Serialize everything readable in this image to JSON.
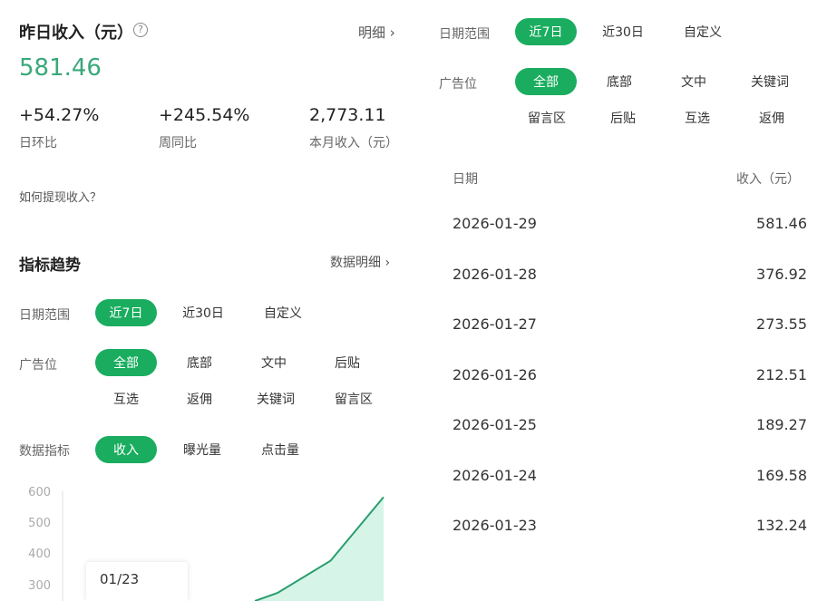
{
  "summary": {
    "title": "昨日收入（元）",
    "help_icon": "question-circle-icon",
    "detail_link": "明细",
    "value": "581.46",
    "accent": "#3aa87a",
    "stats": [
      {
        "value": "+54.27%",
        "label": "日环比"
      },
      {
        "value": "+245.54%",
        "label": "周同比"
      },
      {
        "value": "2,773.11",
        "label": "本月收入（元）"
      }
    ],
    "withdraw_link": "如何提现收入？"
  },
  "trend": {
    "title": "指标趋势",
    "detail_link": "数据明细",
    "date_label": "日期范围",
    "date_options": [
      "近7日",
      "近30日",
      "自定义"
    ],
    "ad_label": "广告位",
    "ad_options": [
      "全部",
      "底部",
      "文中",
      "后贴",
      "互选",
      "返佣",
      "关键词",
      "留言区"
    ],
    "metric_label": "数据指标",
    "metric_options": [
      "收入",
      "曝光量",
      "点击量"
    ],
    "tooltip": "01/23"
  },
  "chart_data": {
    "type": "area",
    "x": [
      "01/23",
      "01/24",
      "01/25",
      "01/26",
      "01/27",
      "01/28",
      "01/29"
    ],
    "values": [
      132.24,
      169.58,
      189.27,
      212.51,
      273.55,
      376.92,
      581.46
    ],
    "yticks": [
      "600",
      "500",
      "400",
      "300"
    ],
    "ylim": [
      0,
      600
    ],
    "color": "#2a9d6e"
  },
  "right": {
    "date_label": "日期范围",
    "date_options": [
      "近7日",
      "近30日",
      "自定义"
    ],
    "ad_label": "广告位",
    "ad_options": [
      "全部",
      "底部",
      "文中",
      "关键词",
      "留言区",
      "后贴",
      "互选",
      "返佣"
    ],
    "table": {
      "headers": [
        "日期",
        "收入（元）"
      ],
      "rows": [
        [
          "2026-01-29",
          "581.46"
        ],
        [
          "2026-01-28",
          "376.92"
        ],
        [
          "2026-01-27",
          "273.55"
        ],
        [
          "2026-01-26",
          "212.51"
        ],
        [
          "2026-01-25",
          "189.27"
        ],
        [
          "2026-01-24",
          "169.58"
        ],
        [
          "2026-01-23",
          "132.24"
        ]
      ]
    }
  },
  "brand_green": "#1aad5f"
}
